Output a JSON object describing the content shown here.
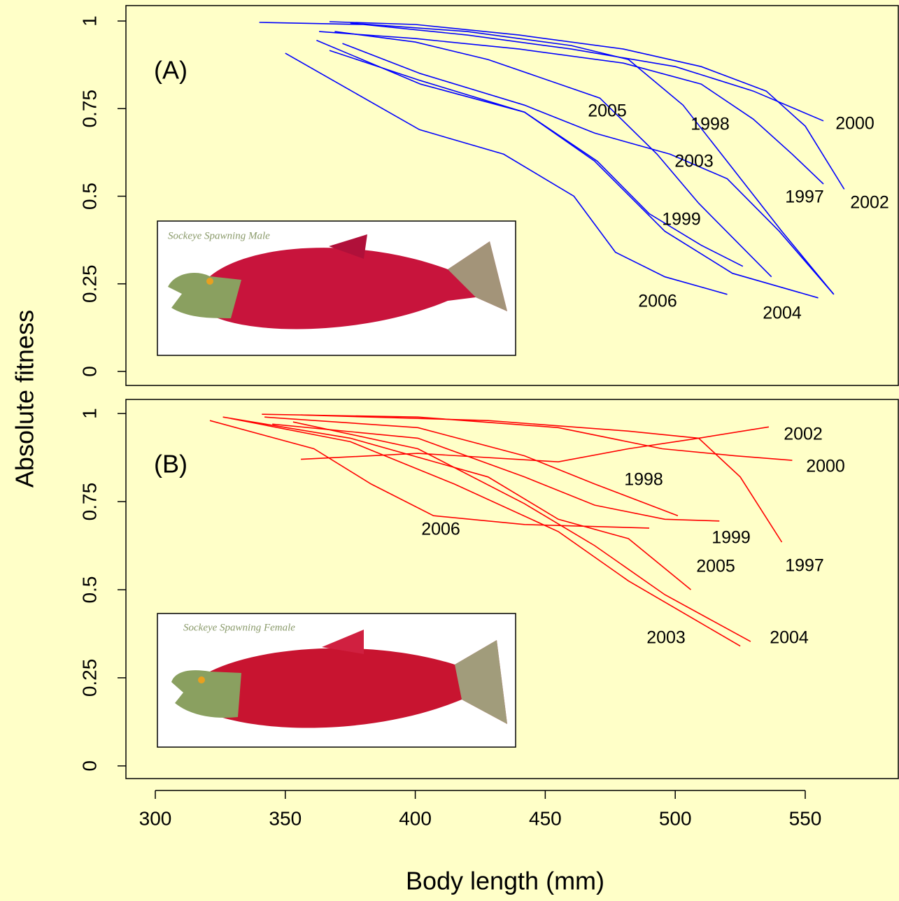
{
  "chart_data": [
    {
      "type": "line",
      "panel_label": "(A)",
      "ylabel": "Absolute fitness",
      "inset_caption": "Sockeye Spawning Male",
      "xlim": [
        288.7,
        585.8
      ],
      "ylim": [
        -0.04,
        1.044
      ],
      "yticks": [
        0,
        0.25,
        0.5,
        0.75,
        1
      ],
      "series": [
        {
          "name": "2000",
          "color": "#0000ff",
          "x": [
            340,
            380,
            420,
            460,
            500,
            530,
            557
          ],
          "values": [
            0.996,
            0.99,
            0.96,
            0.92,
            0.87,
            0.8,
            0.715
          ]
        },
        {
          "name": "2002",
          "color": "#0000ff",
          "x": [
            367,
            400,
            440,
            480,
            510,
            535,
            550,
            565
          ],
          "values": [
            0.998,
            0.99,
            0.96,
            0.92,
            0.87,
            0.8,
            0.7,
            0.52
          ]
        },
        {
          "name": "1997",
          "color": "#0000ff",
          "x": [
            363,
            400,
            440,
            480,
            510,
            530,
            545,
            557
          ],
          "values": [
            0.97,
            0.95,
            0.92,
            0.88,
            0.82,
            0.72,
            0.62,
            0.535
          ]
        },
        {
          "name": "1998",
          "color": "#0000ff",
          "x": [
            375,
            420,
            460,
            482,
            503,
            522,
            541,
            561
          ],
          "values": [
            0.994,
            0.97,
            0.93,
            0.89,
            0.76,
            0.58,
            0.4,
            0.22
          ]
        },
        {
          "name": "2005",
          "color": "#0000ff",
          "x": [
            369,
            400,
            428,
            471,
            493,
            509,
            537
          ],
          "values": [
            0.97,
            0.94,
            0.89,
            0.78,
            0.62,
            0.48,
            0.27
          ]
        },
        {
          "name": "2003",
          "color": "#0000ff",
          "x": [
            372,
            402,
            442,
            469,
            498,
            520,
            540,
            561
          ],
          "values": [
            0.936,
            0.85,
            0.76,
            0.68,
            0.62,
            0.55,
            0.4,
            0.22
          ]
        },
        {
          "name": "1999",
          "color": "#0000ff",
          "x": [
            362,
            402,
            442,
            470,
            490,
            510,
            526
          ],
          "values": [
            0.945,
            0.82,
            0.74,
            0.6,
            0.45,
            0.36,
            0.3
          ]
        },
        {
          "name": "2006",
          "color": "#0000ff",
          "x": [
            350,
            401.6,
            434,
            461,
            477,
            496,
            520
          ],
          "values": [
            0.908,
            0.69,
            0.62,
            0.5,
            0.34,
            0.27,
            0.22
          ]
        },
        {
          "name": "2004",
          "color": "#0000ff",
          "x": [
            367,
            402,
            442,
            469,
            496,
            522,
            555
          ],
          "values": [
            0.916,
            0.83,
            0.74,
            0.6,
            0.4,
            0.28,
            0.21
          ]
        }
      ]
    },
    {
      "type": "line",
      "panel_label": "(B)",
      "xlabel": "Body length (mm)",
      "inset_caption": "Sockeye Spawning Female",
      "xlim": [
        288.7,
        585.8
      ],
      "ylim": [
        -0.036,
        1.04
      ],
      "yticks": [
        0,
        0.25,
        0.5,
        0.75,
        1
      ],
      "xticks": [
        300,
        350,
        400,
        450,
        500,
        550
      ],
      "series": [
        {
          "name": "2002",
          "color": "#ff0000",
          "x": [
            356,
            401,
            455,
            482,
            509,
            536
          ],
          "values": [
            0.87,
            0.887,
            0.863,
            0.9,
            0.93,
            0.962
          ]
        },
        {
          "name": "2000",
          "color": "#ff0000",
          "x": [
            341,
            401,
            455,
            495,
            523,
            545
          ],
          "values": [
            0.998,
            0.99,
            0.96,
            0.9,
            0.88,
            0.867
          ]
        },
        {
          "name": "1997",
          "color": "#ff0000",
          "x": [
            356,
            428,
            482,
            509,
            525,
            541
          ],
          "values": [
            0.996,
            0.98,
            0.95,
            0.93,
            0.82,
            0.635
          ]
        },
        {
          "name": "1998",
          "color": "#ff0000",
          "x": [
            342,
            401,
            442,
            469,
            501
          ],
          "values": [
            0.99,
            0.96,
            0.88,
            0.8,
            0.71
          ]
        },
        {
          "name": "1999",
          "color": "#ff0000",
          "x": [
            345,
            401,
            442,
            469,
            496,
            517
          ],
          "values": [
            0.97,
            0.93,
            0.82,
            0.74,
            0.7,
            0.695
          ]
        },
        {
          "name": "2006",
          "color": "#ff0000",
          "x": [
            321,
            361,
            383,
            407,
            442,
            490
          ],
          "values": [
            0.98,
            0.9,
            0.8,
            0.71,
            0.685,
            0.675
          ]
        },
        {
          "name": "2005",
          "color": "#ff0000",
          "x": [
            326,
            375,
            428,
            455,
            482,
            506
          ],
          "values": [
            0.99,
            0.93,
            0.82,
            0.7,
            0.645,
            0.5
          ]
        },
        {
          "name": "2003",
          "color": "#ff0000",
          "x": [
            329,
            375,
            415,
            455,
            482,
            525
          ],
          "values": [
            0.986,
            0.92,
            0.8,
            0.665,
            0.525,
            0.34
          ]
        },
        {
          "name": "2004",
          "color": "#ff0000",
          "x": [
            353,
            401,
            442,
            469,
            496,
            529
          ],
          "values": [
            0.976,
            0.9,
            0.744,
            0.625,
            0.486,
            0.353
          ]
        }
      ]
    }
  ]
}
